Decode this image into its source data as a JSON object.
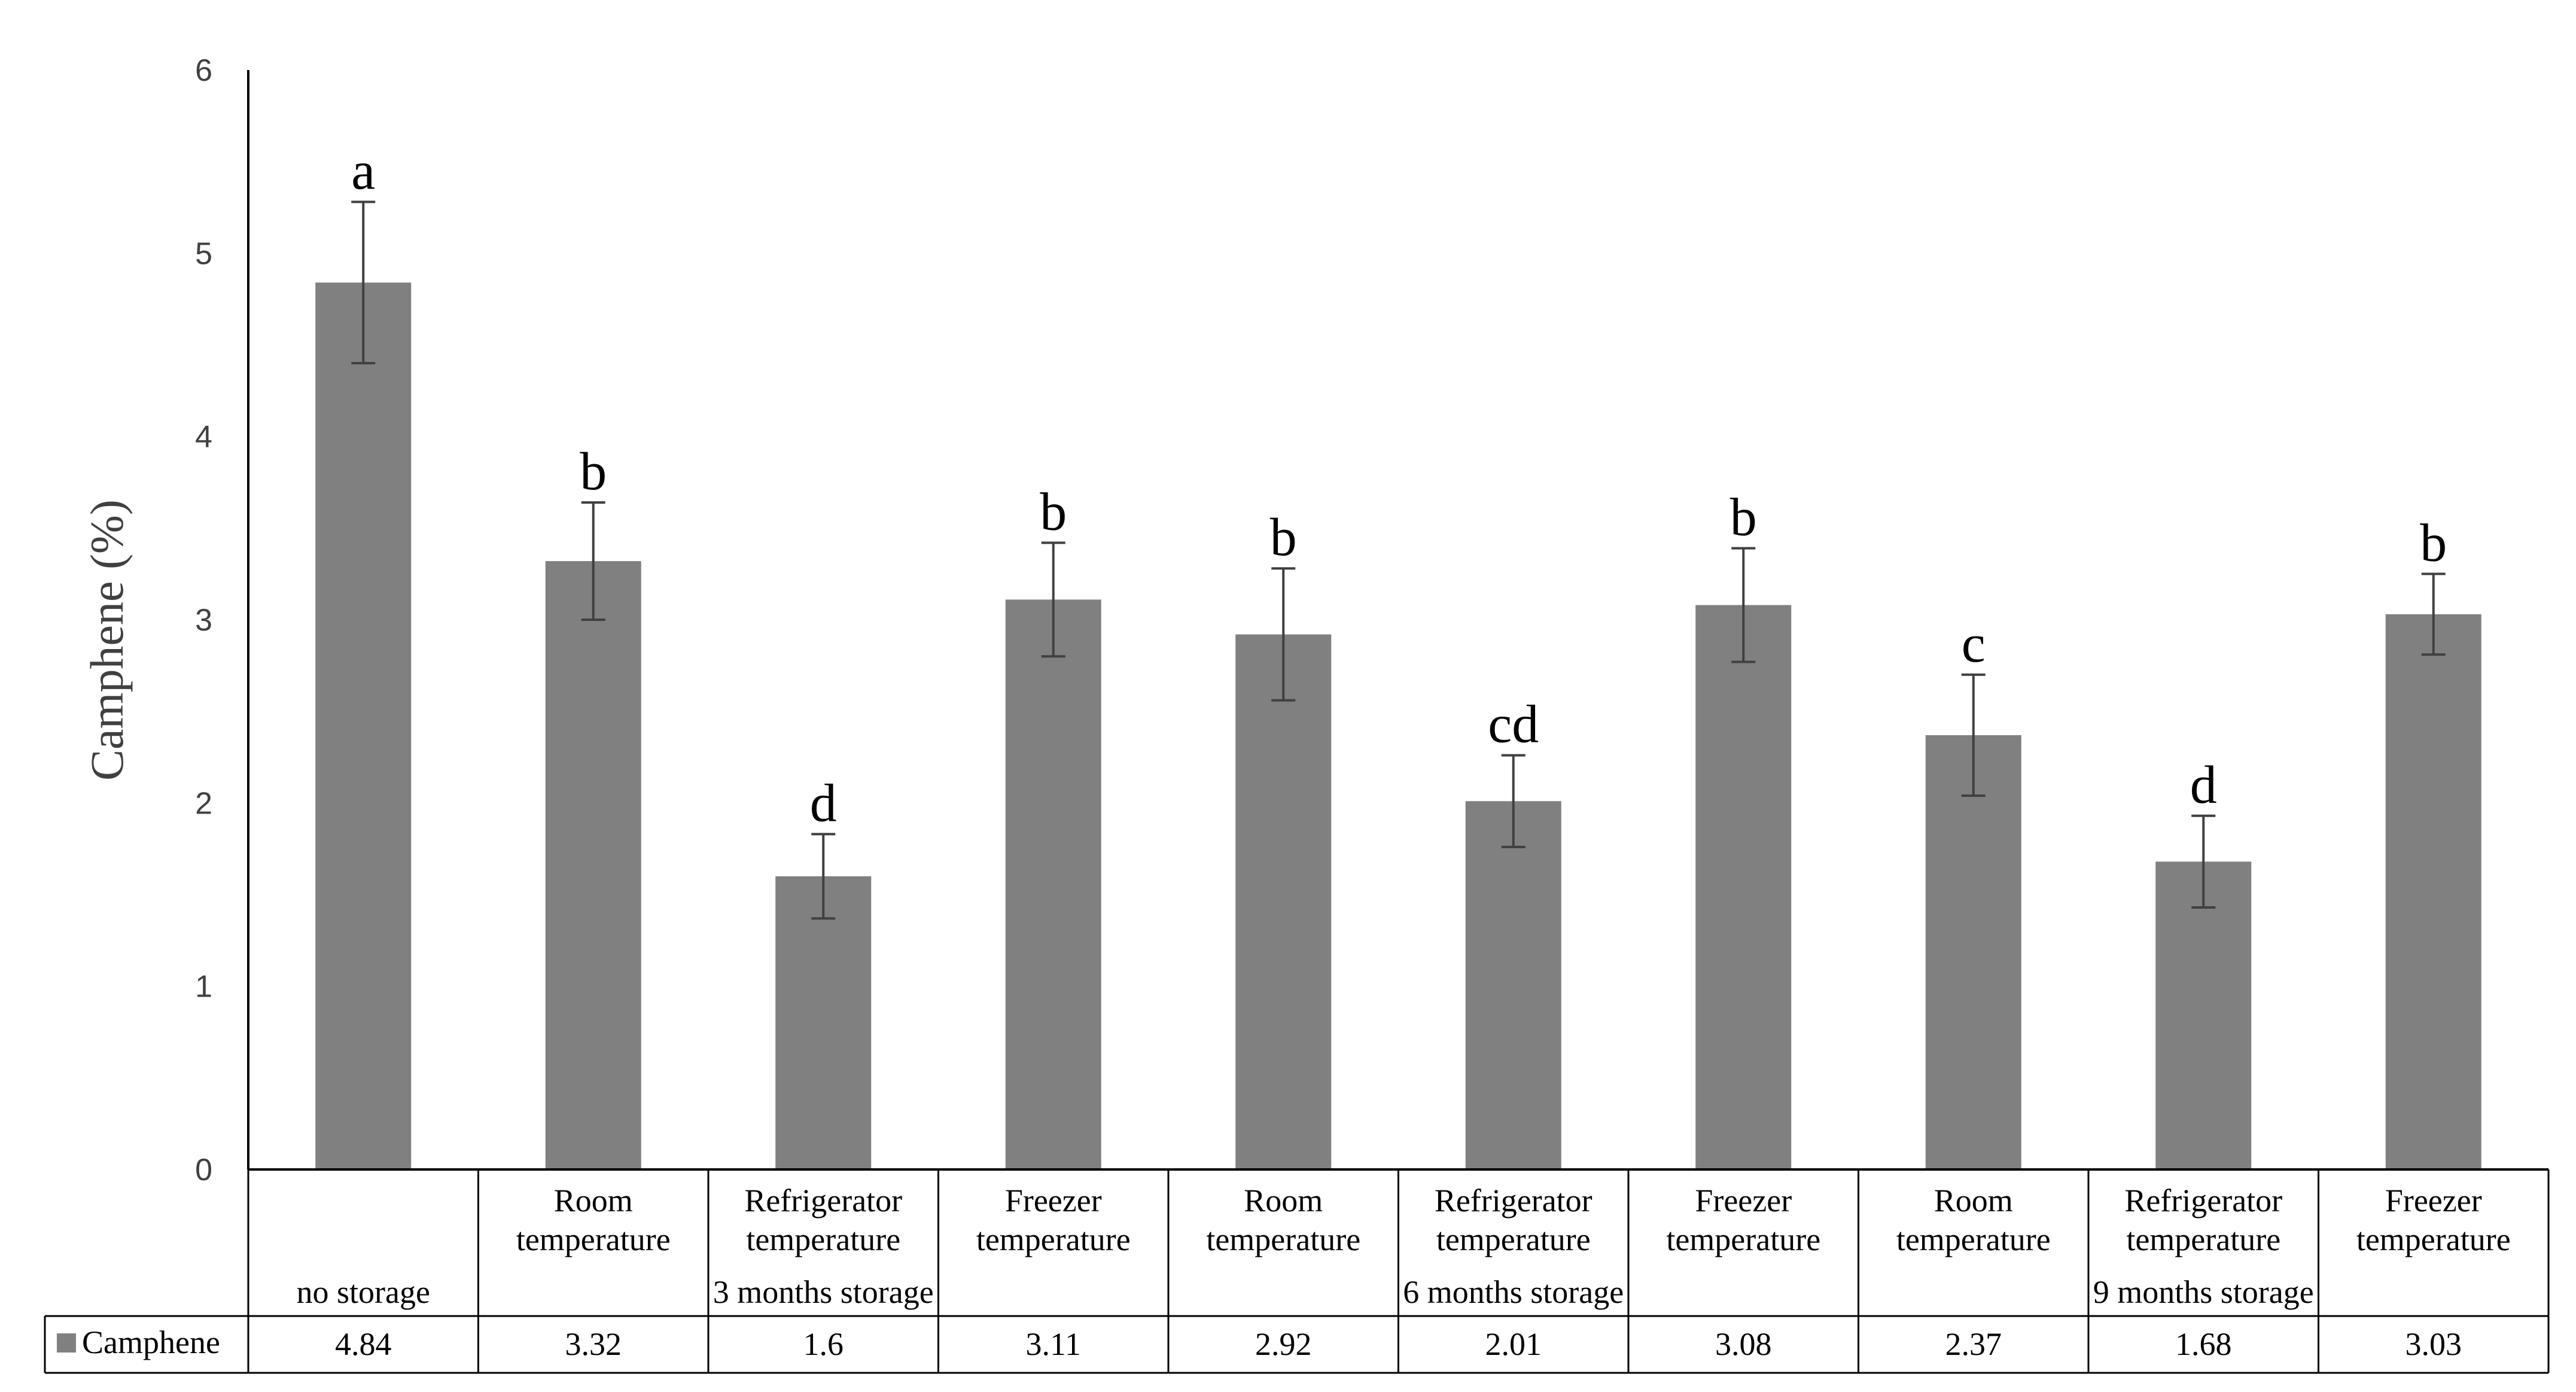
{
  "chart_data": {
    "type": "bar",
    "ylabel": "Camphene (%)",
    "xlabel": "",
    "ylim": [
      0,
      6
    ],
    "yticks": [
      0,
      1,
      2,
      3,
      4,
      5,
      6
    ],
    "grid": false,
    "legend": "data-table-left",
    "bar_color": "#808080",
    "categories": [
      {
        "label": [
          "",
          ""
        ],
        "group": "no storage"
      },
      {
        "label": [
          "Room",
          "temperature"
        ],
        "group": "3 months storage"
      },
      {
        "label": [
          "Refrigerator",
          "temperature"
        ],
        "group": "3 months storage"
      },
      {
        "label": [
          "Freezer",
          "temperature"
        ],
        "group": "3 months storage"
      },
      {
        "label": [
          "Room",
          "temperature"
        ],
        "group": "6 months storage"
      },
      {
        "label": [
          "Refrigerator",
          "temperature"
        ],
        "group": "6 months storage"
      },
      {
        "label": [
          "Freezer",
          "temperature"
        ],
        "group": "6 months storage"
      },
      {
        "label": [
          "Room",
          "temperature"
        ],
        "group": "9 months storage"
      },
      {
        "label": [
          "Refrigerator",
          "temperature"
        ],
        "group": "9 months storage"
      },
      {
        "label": [
          "Freezer",
          "temperature"
        ],
        "group": "9 months storage"
      }
    ],
    "groups": [
      {
        "name": "no storage",
        "start": 0,
        "end": 0
      },
      {
        "name": "3 months storage",
        "start": 1,
        "end": 3
      },
      {
        "name": "6 months storage",
        "start": 4,
        "end": 6
      },
      {
        "name": "9 months storage",
        "start": 7,
        "end": 9
      }
    ],
    "series": [
      {
        "name": "Camphene",
        "values": [
          4.84,
          3.32,
          1.6,
          3.11,
          2.92,
          2.01,
          3.08,
          2.37,
          1.68,
          3.03
        ],
        "value_labels": [
          "4.84",
          "3.32",
          "1.6",
          "3.11",
          "2.92",
          "2.01",
          "3.08",
          "2.37",
          "1.68",
          "3.03"
        ],
        "errors": [
          0.44,
          0.32,
          0.23,
          0.31,
          0.36,
          0.25,
          0.31,
          0.33,
          0.25,
          0.22
        ],
        "significance": [
          "a",
          "b",
          "d",
          "b",
          "b",
          "cd",
          "b",
          "c",
          "d",
          "b"
        ]
      }
    ]
  }
}
